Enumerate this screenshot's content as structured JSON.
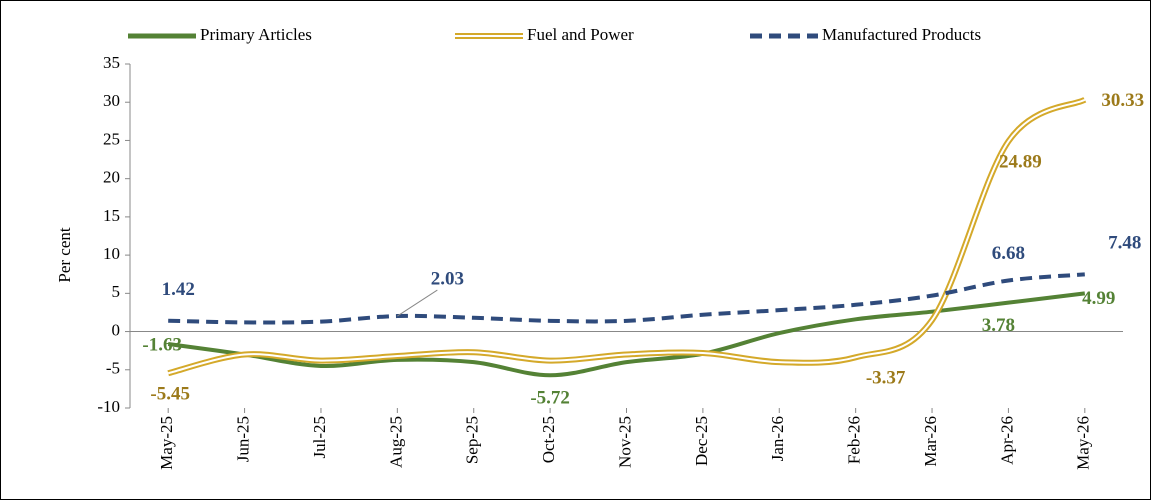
{
  "chart_data": {
    "type": "line",
    "y_label": "Per cent",
    "categories": [
      "May-25",
      "Jun-25",
      "Jul-25",
      "Aug-25",
      "Sep-25",
      "Oct-25",
      "Nov-25",
      "Dec-25",
      "Jan-26",
      "Feb-26",
      "Mar-26",
      "Apr-26",
      "May-26"
    ],
    "series": [
      {
        "name": "Primary Articles",
        "color": "#548235",
        "label_color": "#548235",
        "style": "solid",
        "values": [
          -1.63,
          -3.0,
          -4.5,
          -3.7,
          -4.0,
          -5.72,
          -4.0,
          -2.9,
          -0.2,
          1.6,
          2.6,
          3.78,
          4.99
        ],
        "value_labels": [
          "-1.63",
          null,
          null,
          null,
          null,
          "-5.72",
          null,
          null,
          null,
          null,
          null,
          "3.78",
          "4.99"
        ]
      },
      {
        "name": "Fuel and Power",
        "color": "#d4a92a",
        "label_color": "#9c7a1a",
        "style": "double",
        "values": [
          -5.45,
          -3.0,
          -3.8,
          -3.2,
          -2.7,
          -3.8,
          -3.0,
          -2.8,
          -4.0,
          -3.37,
          1.5,
          24.89,
          30.33
        ],
        "value_labels": [
          "-5.45",
          null,
          null,
          null,
          null,
          null,
          null,
          null,
          null,
          "-3.37",
          null,
          "24.89",
          "30.33"
        ]
      },
      {
        "name": "Manufactured Products",
        "color": "#2f4b7c",
        "label_color": "#2f4b7c",
        "style": "dashed",
        "values": [
          1.42,
          1.2,
          1.3,
          2.03,
          1.8,
          1.4,
          1.4,
          2.2,
          2.8,
          3.5,
          4.7,
          6.68,
          7.48
        ],
        "value_labels": [
          "1.42",
          null,
          null,
          "2.03",
          null,
          null,
          null,
          null,
          null,
          null,
          null,
          "6.68",
          "7.48"
        ]
      }
    ],
    "ylim": [
      -10,
      35
    ],
    "yticks": [
      -10,
      -5,
      0,
      5,
      10,
      15,
      20,
      25,
      30,
      35
    ],
    "legend": "top"
  }
}
